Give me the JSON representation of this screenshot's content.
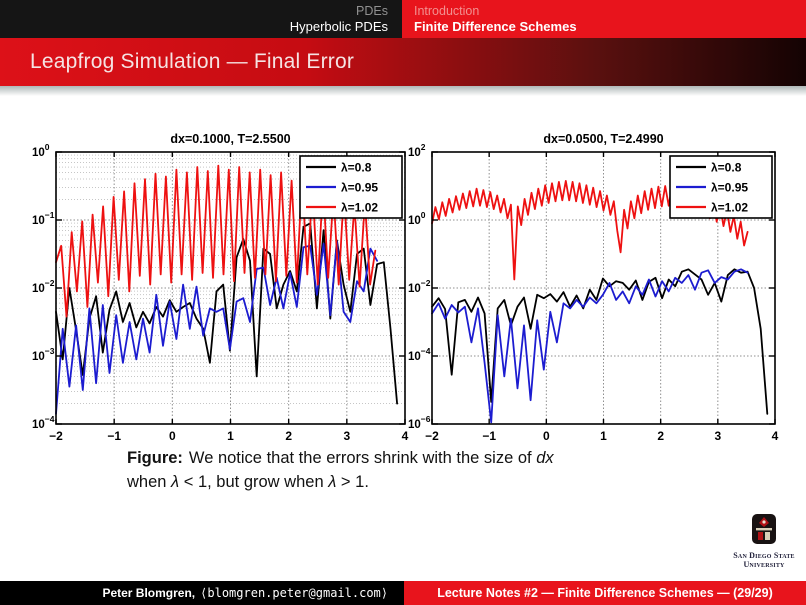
{
  "nav": {
    "left_top": "PDEs",
    "left_bottom": "Hyperbolic PDEs",
    "right_top": "Introduction",
    "right_bottom": "Finite Difference Schemes"
  },
  "frame_title": "Leapfrog Simulation — Final Error",
  "caption": {
    "label": "Figure:",
    "line1_text": "We notice that the errors shrink with the size of ",
    "line1_math": "dx",
    "line2_pre": "when ",
    "lambda": "λ",
    "line2_mid": " < 1, but grow when ",
    "line2_post": " > 1."
  },
  "logo": {
    "line1": "San Diego State",
    "line2": "University"
  },
  "footer": {
    "author": "Peter Blomgren,",
    "email": "⟨blomgren.peter@gmail.com⟩",
    "right": "Lecture Notes #2 — Finite Difference Schemes — (29/29)"
  },
  "colors": {
    "nav_black": "#151515",
    "accent_red": "#e8141c",
    "series_black": "#000000",
    "series_blue": "#1c1cd0",
    "series_red": "#ee1111",
    "grid_gray": "#b8b8b8"
  },
  "chart_data": [
    {
      "type": "line",
      "title": "dx=0.1000, T=2.5500",
      "xlabel": "",
      "ylabel": "",
      "xlim": [
        -2,
        4
      ],
      "ylog10_lim": [
        -4,
        0
      ],
      "x_ticks": [
        -2,
        -1,
        0,
        1,
        2,
        3,
        4
      ],
      "y_tick_exponents": [
        0,
        -1,
        -2,
        -3,
        -4
      ],
      "minor_log_grid": true,
      "grid": "dotted",
      "legend_position": "top-right",
      "legend": [
        {
          "label": "λ=0.8",
          "color": "#000000"
        },
        {
          "label": "λ=0.95",
          "color": "#1c1cd0"
        },
        {
          "label": "λ=1.02",
          "color": "#ee1111"
        }
      ],
      "series": [
        {
          "name": "λ=0.8",
          "color": "#000000",
          "x0": -2,
          "dx": 0.115,
          "log10y": [
            -2.35,
            -3.05,
            -2.0,
            -2.62,
            -3.28,
            -2.45,
            -2.12,
            -2.95,
            -2.32,
            -2.05,
            -2.5,
            -2.22,
            -2.58,
            -2.35,
            -2.52,
            -2.28,
            -2.42,
            -2.18,
            -2.35,
            -2.28,
            -2.22,
            -2.45,
            -2.6,
            -3.1,
            -2.05,
            -1.95,
            -2.92,
            -1.55,
            -1.28,
            -1.6,
            -3.3,
            -1.42,
            -1.5,
            -2.3,
            -1.95,
            -1.75,
            -2.05,
            -1.1,
            -1.05,
            -2.3,
            -1.15,
            -2.45,
            -1.3,
            -1.95,
            -2.35,
            -1.5,
            -1.42,
            -2.25,
            -1.65,
            -1.62,
            -2.6,
            -3.7
          ]
        },
        {
          "name": "λ=0.95",
          "color": "#1c1cd0",
          "x0": -2,
          "dx": 0.115,
          "log10y": [
            -3.85,
            -2.6,
            -3.45,
            -2.55,
            -3.5,
            -2.3,
            -3.4,
            -2.25,
            -3.25,
            -2.4,
            -3.1,
            -2.5,
            -3.05,
            -2.45,
            -2.95,
            -2.1,
            -2.85,
            -2.2,
            -2.75,
            -1.95,
            -2.6,
            -1.98,
            -2.7,
            -2.3,
            -2.35,
            -2.3,
            -2.9,
            -2.2,
            -2.15,
            -2.5,
            -1.72,
            -1.7,
            -2.25,
            -1.85,
            -2.3,
            -1.78,
            -2.28,
            -1.4,
            -1.38,
            -2.1,
            -1.35,
            -2.4,
            -1.32,
            -2.35,
            -2.5,
            -1.9,
            -2.05,
            -1.42,
            -1.6
          ]
        },
        {
          "name": "λ=1.02",
          "color": "#ee1111",
          "x0": -2,
          "dx": 0.09,
          "log10y": [
            -1.62,
            -1.38,
            -2.42,
            -1.18,
            -2.05,
            -1.02,
            -2.28,
            -0.92,
            -1.92,
            -0.8,
            -2.12,
            -0.66,
            -1.88,
            -0.58,
            -2.05,
            -0.46,
            -1.82,
            -0.4,
            -1.95,
            -0.32,
            -1.8,
            -0.36,
            -1.92,
            -0.26,
            -1.8,
            -0.3,
            -1.88,
            -0.22,
            -1.78,
            -0.28,
            -1.85,
            -0.2,
            -1.8,
            -0.26,
            -1.9,
            -0.22,
            -1.78,
            -0.3,
            -1.85,
            -0.26,
            -1.8,
            -0.34,
            -1.9,
            -0.3,
            -1.82,
            -0.42,
            -1.92,
            -0.38,
            -1.8,
            -0.52,
            -1.95,
            -0.48,
            -1.85,
            -0.62,
            -1.95,
            -0.58,
            -1.88,
            -0.78,
            -1.98,
            -0.72,
            -1.95,
            -1.45
          ]
        }
      ]
    },
    {
      "type": "line",
      "title": "dx=0.0500, T=2.4990",
      "xlabel": "",
      "ylabel": "",
      "xlim": [
        -2,
        4
      ],
      "ylog10_lim": [
        -6,
        2
      ],
      "x_ticks": [
        -2,
        -1,
        0,
        1,
        2,
        3,
        4
      ],
      "y_tick_exponents": [
        2,
        0,
        -2,
        -4,
        -6
      ],
      "minor_log_grid": false,
      "grid": "dotted",
      "legend_position": "top-right",
      "legend": [
        {
          "label": "λ=0.8",
          "color": "#000000"
        },
        {
          "label": "λ=0.95",
          "color": "#1c1cd0"
        },
        {
          "label": "λ=1.02",
          "color": "#ee1111"
        }
      ],
      "series": [
        {
          "name": "λ=0.8",
          "color": "#000000",
          "x0": -2,
          "dx": 0.115,
          "log10y": [
            -2.55,
            -2.3,
            -2.62,
            -4.55,
            -2.42,
            -2.35,
            -2.7,
            -2.28,
            -2.75,
            -5.35,
            -2.6,
            -2.35,
            -3.1,
            -2.55,
            -2.28,
            -3.2,
            -2.2,
            -2.3,
            -2.18,
            -2.4,
            -2.12,
            -2.55,
            -2.22,
            -2.6,
            -2.05,
            -2.35,
            -1.72,
            -1.95,
            -1.8,
            -1.85,
            -2.05,
            -1.78,
            -2.35,
            -1.82,
            -1.7,
            -2.3,
            -1.75,
            -1.95,
            -1.52,
            -1.45,
            -1.6,
            -1.75,
            -2.2,
            -1.85,
            -2.4,
            -1.62,
            -1.45,
            -1.55,
            -1.52,
            -2.0,
            -3.2,
            -5.7
          ]
        },
        {
          "name": "λ=0.95",
          "color": "#1c1cd0",
          "x0": -2,
          "dx": 0.115,
          "log10y": [
            -2.75,
            -2.45,
            -2.9,
            -2.5,
            -2.72,
            -2.55,
            -3.6,
            -2.6,
            -4.2,
            -5.95,
            -2.8,
            -4.6,
            -2.9,
            -4.95,
            -3.1,
            -5.3,
            -2.95,
            -4.4,
            -2.7,
            -3.6,
            -2.45,
            -2.6,
            -2.35,
            -2.55,
            -2.28,
            -2.45,
            -2.2,
            -1.85,
            -2.35,
            -2.1,
            -2.45,
            -1.95,
            -2.2,
            -1.75,
            -2.25,
            -1.8,
            -2.1,
            -1.7,
            -1.85,
            -1.62,
            -2.05,
            -1.55,
            -1.48,
            -1.85,
            -1.68,
            -1.75,
            -1.52,
            -1.45,
            -1.55
          ]
        },
        {
          "name": "λ=1.02",
          "color": "#ee1111",
          "x0": -2,
          "dx": 0.06,
          "log10y": [
            -0.1,
            0.38,
            0.02,
            0.52,
            0.12,
            0.62,
            0.22,
            0.7,
            0.3,
            0.78,
            0.35,
            0.85,
            0.4,
            0.92,
            0.42,
            0.88,
            0.38,
            0.82,
            0.32,
            0.72,
            0.22,
            0.62,
            0.05,
            0.45,
            -1.75,
            0.4,
            -0.15,
            0.62,
            0.15,
            0.8,
            0.32,
            0.92,
            0.42,
            1.02,
            0.5,
            1.08,
            0.55,
            1.12,
            0.58,
            1.15,
            0.58,
            1.12,
            0.55,
            1.08,
            0.5,
            1.02,
            0.45,
            0.95,
            0.38,
            0.85,
            0.28,
            0.72,
            0.15,
            0.55,
            -0.3,
            -0.95,
            0.3,
            -0.25,
            0.55,
            0.05,
            0.72,
            0.2,
            0.85,
            0.3,
            0.92,
            0.35,
            0.98,
            0.4,
            1.0,
            0.42,
            1.0,
            0.4,
            0.95,
            0.35,
            0.9,
            0.3,
            0.82,
            0.22,
            0.72,
            0.15,
            0.62,
            0.05,
            0.52,
            -0.05,
            0.4,
            -0.18,
            0.28,
            -0.35,
            0.12,
            -0.55,
            -0.05,
            -0.75,
            -0.35
          ]
        }
      ]
    }
  ]
}
